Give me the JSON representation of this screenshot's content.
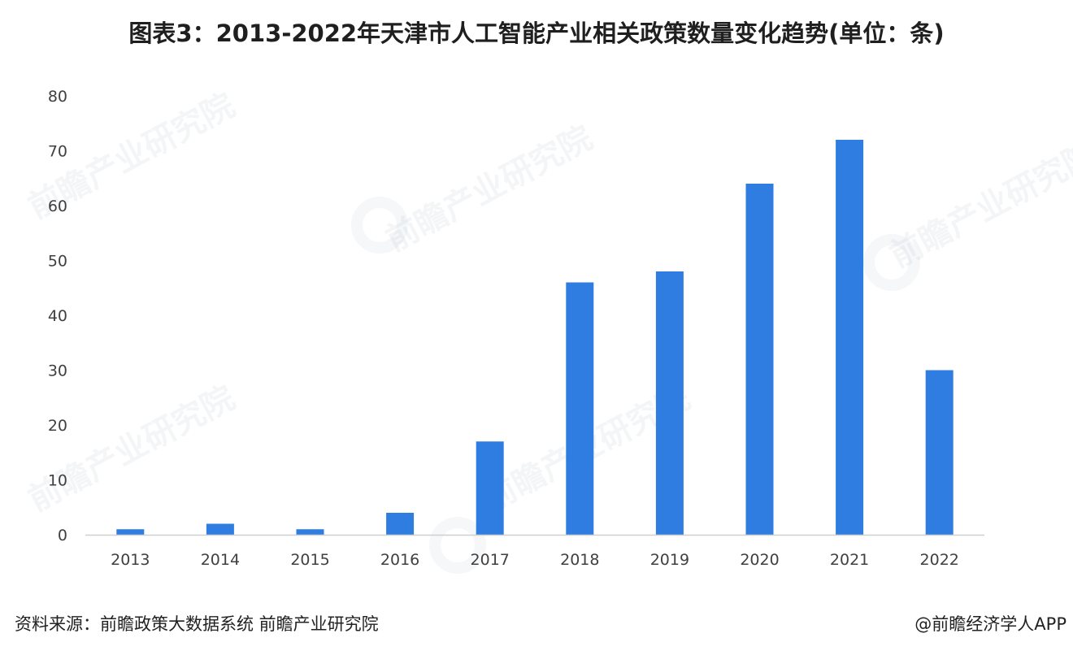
{
  "title": "图表3：2013-2022年天津市人工智能产业相关政策数量变化趋势(单位：条)",
  "watermark_text": "前瞻产业研究院",
  "source": "资料来源：前瞻政策大数据系统 前瞻产业研究院",
  "brand": "@前瞻经济学人APP",
  "colors": {
    "bar": "#2f7de1",
    "axis": "#cfcfcf",
    "tick_text": "#404040"
  },
  "chart_data": {
    "type": "bar",
    "title": "图表3：2013-2022年天津市人工智能产业相关政策数量变化趋势(单位：条)",
    "xlabel": "",
    "ylabel": "",
    "categories": [
      "2013",
      "2014",
      "2015",
      "2016",
      "2017",
      "2018",
      "2019",
      "2020",
      "2021",
      "2022"
    ],
    "values": [
      1,
      2,
      1,
      4,
      17,
      46,
      48,
      64,
      72,
      30
    ],
    "ylim": [
      0,
      80
    ],
    "yticks": [
      0,
      10,
      20,
      30,
      40,
      50,
      60,
      70,
      80
    ],
    "grid": false,
    "legend": "none"
  }
}
